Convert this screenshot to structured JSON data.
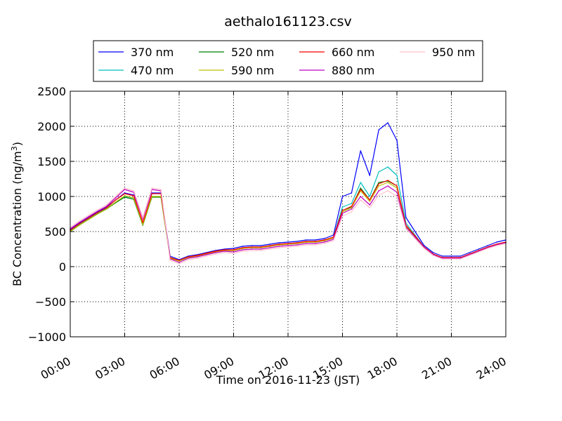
{
  "chart_data": {
    "type": "line",
    "title": "aethalo161123.csv",
    "xlabel": "Time on 2016-11-23 (JST)",
    "ylabel_main": "BC Concentration (ng/m",
    "ylabel_sup": "3",
    "ylabel_end": ")",
    "x_unit": "hours",
    "xlim": [
      0,
      24
    ],
    "ylim": [
      -1000,
      2500
    ],
    "grid": true,
    "legend_position": "top-center",
    "x_ticks": [
      {
        "value": 0,
        "label": "00:00"
      },
      {
        "value": 3,
        "label": "03:00"
      },
      {
        "value": 6,
        "label": "06:00"
      },
      {
        "value": 9,
        "label": "09:00"
      },
      {
        "value": 12,
        "label": "12:00"
      },
      {
        "value": 15,
        "label": "15:00"
      },
      {
        "value": 18,
        "label": "18:00"
      },
      {
        "value": 21,
        "label": "21:00"
      },
      {
        "value": 24,
        "label": "24:00"
      }
    ],
    "y_ticks": [
      {
        "value": 2500,
        "label": "2500"
      },
      {
        "value": 2000,
        "label": "2000"
      },
      {
        "value": 1500,
        "label": "1500"
      },
      {
        "value": 1000,
        "label": "1000"
      },
      {
        "value": 500,
        "label": "500"
      },
      {
        "value": 0,
        "label": "0"
      },
      {
        "value": -500,
        "label": "−500"
      },
      {
        "value": -1000,
        "label": "−1000"
      }
    ],
    "x": [
      0,
      0.5,
      1,
      1.5,
      2,
      2.5,
      3,
      3.5,
      4,
      4.5,
      5,
      5.5,
      6,
      6.5,
      7,
      7.5,
      8,
      8.5,
      9,
      9.5,
      10,
      10.5,
      11,
      11.5,
      12,
      12.5,
      13,
      13.5,
      14,
      14.5,
      15,
      15.5,
      16,
      16.5,
      17,
      17.5,
      18,
      18.5,
      19,
      19.5,
      20,
      20.5,
      21,
      21.5,
      22,
      22.5,
      23,
      23.5,
      24
    ],
    "series": [
      {
        "name": "370 nm",
        "color": "#0000ff",
        "values": [
          530,
          620,
          700,
          780,
          850,
          950,
          1050,
          1020,
          620,
          1050,
          1050,
          150,
          100,
          150,
          170,
          200,
          230,
          250,
          260,
          290,
          300,
          300,
          320,
          340,
          350,
          360,
          380,
          380,
          400,
          450,
          1000,
          1050,
          1650,
          1300,
          1950,
          2050,
          1800,
          700,
          500,
          300,
          200,
          150,
          150,
          150,
          200,
          250,
          300,
          350,
          380
        ]
      },
      {
        "name": "470 nm",
        "color": "#00bfbf",
        "values": [
          510,
          600,
          680,
          760,
          830,
          920,
          1000,
          980,
          600,
          1000,
          1000,
          130,
          90,
          140,
          160,
          190,
          220,
          240,
          240,
          270,
          280,
          280,
          300,
          320,
          330,
          340,
          360,
          360,
          380,
          420,
          850,
          900,
          1200,
          1000,
          1350,
          1420,
          1300,
          620,
          450,
          280,
          180,
          130,
          130,
          130,
          180,
          230,
          280,
          320,
          350
        ]
      },
      {
        "name": "520 nm",
        "color": "#008000",
        "values": [
          500,
          590,
          670,
          750,
          820,
          910,
          990,
          960,
          590,
          990,
          990,
          120,
          80,
          130,
          150,
          180,
          210,
          230,
          230,
          260,
          270,
          270,
          290,
          310,
          320,
          330,
          350,
          350,
          370,
          410,
          800,
          850,
          1120,
          950,
          1200,
          1220,
          1150,
          580,
          430,
          270,
          170,
          120,
          120,
          120,
          170,
          220,
          270,
          310,
          340
        ]
      },
      {
        "name": "590 nm",
        "color": "#bfbf00",
        "values": [
          500,
          590,
          670,
          750,
          820,
          920,
          1010,
          980,
          600,
          1000,
          1000,
          120,
          80,
          130,
          150,
          180,
          210,
          230,
          230,
          260,
          270,
          270,
          290,
          310,
          320,
          330,
          350,
          350,
          370,
          410,
          780,
          840,
          1080,
          930,
          1150,
          1200,
          1120,
          570,
          420,
          270,
          170,
          120,
          120,
          120,
          170,
          220,
          270,
          310,
          340
        ]
      },
      {
        "name": "660 nm",
        "color": "#ff0000",
        "values": [
          520,
          610,
          690,
          770,
          840,
          950,
          1040,
          1010,
          630,
          1040,
          1040,
          130,
          90,
          140,
          160,
          190,
          220,
          240,
          240,
          270,
          280,
          280,
          300,
          320,
          330,
          340,
          360,
          360,
          380,
          420,
          800,
          860,
          1100,
          950,
          1180,
          1230,
          1150,
          590,
          440,
          280,
          180,
          130,
          130,
          130,
          180,
          230,
          280,
          320,
          350
        ]
      },
      {
        "name": "880 nm",
        "color": "#bf00bf",
        "values": [
          540,
          630,
          710,
          790,
          860,
          980,
          1100,
          1060,
          680,
          1100,
          1080,
          110,
          60,
          120,
          140,
          170,
          200,
          220,
          210,
          240,
          250,
          250,
          270,
          290,
          300,
          310,
          330,
          330,
          350,
          390,
          760,
          820,
          1000,
          880,
          1080,
          1150,
          1060,
          560,
          420,
          270,
          170,
          120,
          120,
          120,
          170,
          220,
          270,
          310,
          340
        ]
      },
      {
        "name": "950 nm",
        "color": "#ffc0cb",
        "values": [
          560,
          650,
          730,
          810,
          880,
          1000,
          1120,
          1080,
          700,
          1120,
          1100,
          90,
          40,
          100,
          120,
          150,
          180,
          200,
          190,
          220,
          230,
          230,
          250,
          270,
          280,
          290,
          310,
          310,
          330,
          370,
          720,
          780,
          950,
          840,
          1020,
          1080,
          1000,
          540,
          400,
          260,
          160,
          110,
          110,
          110,
          160,
          210,
          260,
          300,
          330
        ]
      }
    ]
  }
}
